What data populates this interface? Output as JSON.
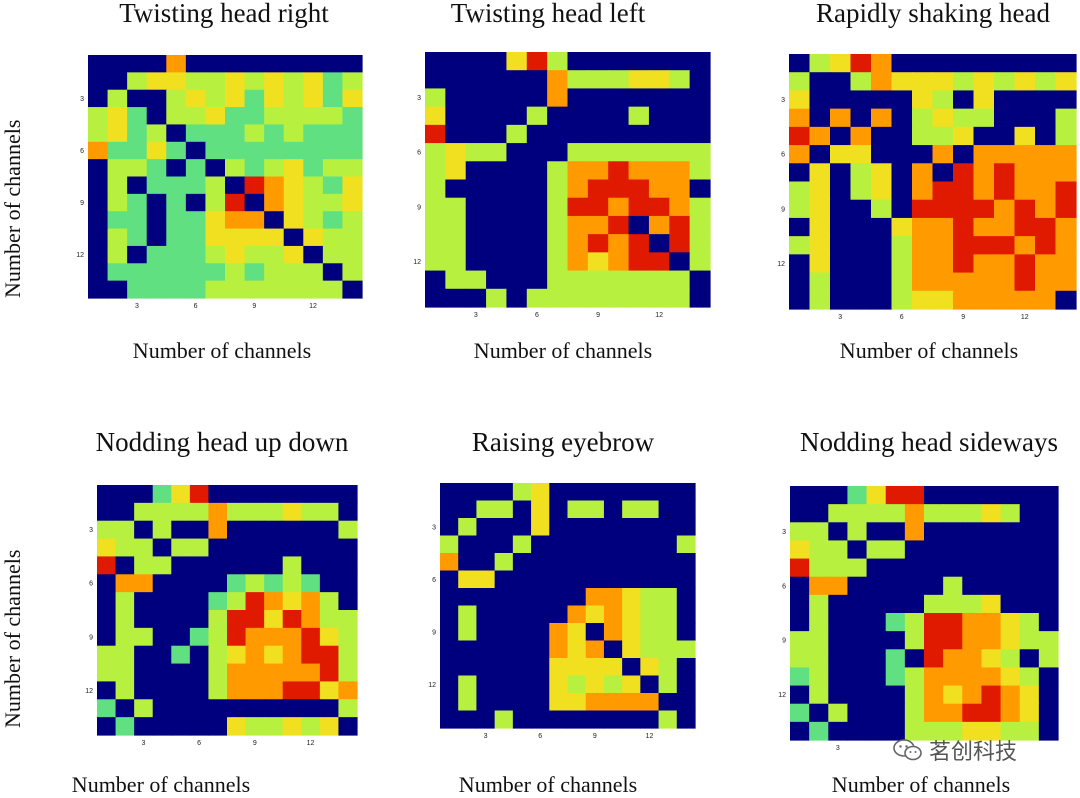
{
  "chart_data": [
    {
      "type": "heatmap",
      "title": "Twisting head right",
      "xlabel": "Number of channels",
      "ylabel": "Number of channels",
      "xticks": [
        "3",
        "6",
        "9",
        "12"
      ],
      "yticks": [
        "3",
        "6",
        "9",
        "12"
      ],
      "n": 14,
      "z": [
        [
          0,
          0,
          0,
          0,
          5,
          0,
          0,
          0,
          0,
          0,
          0,
          0,
          0,
          0
        ],
        [
          0,
          0,
          3,
          4,
          4,
          3,
          3,
          4,
          3,
          4,
          3,
          4,
          2,
          3
        ],
        [
          0,
          3,
          0,
          0,
          3,
          4,
          3,
          4,
          2,
          4,
          3,
          4,
          2,
          4
        ],
        [
          3,
          4,
          2,
          0,
          3,
          3,
          4,
          2,
          2,
          3,
          3,
          3,
          3,
          2
        ],
        [
          3,
          4,
          2,
          3,
          0,
          2,
          2,
          2,
          3,
          2,
          3,
          2,
          2,
          2
        ],
        [
          5,
          2,
          2,
          4,
          2,
          0,
          2,
          2,
          2,
          2,
          2,
          2,
          2,
          2
        ],
        [
          0,
          3,
          3,
          2,
          0,
          2,
          0,
          3,
          2,
          3,
          4,
          2,
          3,
          3
        ],
        [
          0,
          3,
          0,
          2,
          2,
          2,
          3,
          0,
          6,
          5,
          4,
          3,
          2,
          4
        ],
        [
          0,
          3,
          2,
          0,
          2,
          0,
          3,
          6,
          0,
          5,
          4,
          3,
          3,
          4
        ],
        [
          0,
          2,
          2,
          0,
          2,
          2,
          4,
          5,
          5,
          0,
          4,
          3,
          2,
          3
        ],
        [
          0,
          3,
          2,
          0,
          2,
          2,
          4,
          4,
          4,
          4,
          0,
          4,
          3,
          3
        ],
        [
          0,
          3,
          0,
          2,
          2,
          2,
          3,
          4,
          3,
          3,
          4,
          0,
          3,
          3
        ],
        [
          0,
          2,
          2,
          2,
          2,
          2,
          2,
          3,
          2,
          3,
          3,
          3,
          0,
          3
        ],
        [
          0,
          0,
          2,
          2,
          2,
          2,
          3,
          3,
          3,
          3,
          3,
          3,
          3,
          0
        ]
      ]
    },
    {
      "type": "heatmap",
      "title": "Twisting head left",
      "xlabel": "Number of channels",
      "ylabel": "",
      "xticks": [
        "3",
        "6",
        "9",
        "12"
      ],
      "yticks": [
        "3",
        "6",
        "9",
        "12"
      ],
      "n": 14,
      "z": [
        [
          0,
          0,
          0,
          0,
          4,
          6,
          3,
          0,
          0,
          0,
          0,
          0,
          0,
          0
        ],
        [
          0,
          0,
          0,
          0,
          0,
          0,
          5,
          3,
          3,
          3,
          4,
          4,
          3,
          0
        ],
        [
          3,
          0,
          0,
          0,
          0,
          0,
          5,
          0,
          0,
          0,
          0,
          0,
          0,
          0
        ],
        [
          4,
          0,
          0,
          0,
          0,
          3,
          0,
          0,
          0,
          0,
          3,
          0,
          0,
          0
        ],
        [
          6,
          0,
          0,
          0,
          3,
          0,
          0,
          0,
          0,
          0,
          0,
          0,
          0,
          0
        ],
        [
          3,
          4,
          3,
          3,
          0,
          0,
          0,
          3,
          3,
          3,
          3,
          3,
          3,
          3
        ],
        [
          3,
          4,
          0,
          0,
          0,
          0,
          3,
          5,
          5,
          6,
          5,
          5,
          5,
          3
        ],
        [
          3,
          0,
          0,
          0,
          0,
          0,
          3,
          5,
          6,
          6,
          6,
          5,
          5,
          0
        ],
        [
          3,
          3,
          0,
          0,
          0,
          0,
          3,
          6,
          6,
          5,
          6,
          6,
          5,
          3
        ],
        [
          3,
          3,
          0,
          0,
          0,
          0,
          3,
          5,
          5,
          6,
          0,
          5,
          6,
          3
        ],
        [
          3,
          3,
          0,
          0,
          0,
          0,
          3,
          5,
          6,
          5,
          6,
          0,
          6,
          3
        ],
        [
          3,
          3,
          0,
          0,
          0,
          0,
          3,
          5,
          4,
          5,
          6,
          6,
          0,
          3
        ],
        [
          0,
          3,
          3,
          0,
          0,
          0,
          3,
          3,
          3,
          3,
          3,
          3,
          3,
          0
        ],
        [
          0,
          0,
          0,
          3,
          0,
          3,
          3,
          3,
          3,
          3,
          3,
          3,
          3,
          0
        ]
      ]
    },
    {
      "type": "heatmap",
      "title": "Rapidly shaking head",
      "xlabel": "Number of channels",
      "ylabel": "",
      "xticks": [
        "3",
        "6",
        "9",
        "12"
      ],
      "yticks": [
        "3",
        "6",
        "9",
        "12"
      ],
      "n": 14,
      "z": [
        [
          0,
          3,
          4,
          6,
          5,
          0,
          0,
          0,
          0,
          0,
          0,
          0,
          0,
          0
        ],
        [
          3,
          0,
          0,
          3,
          5,
          4,
          4,
          4,
          3,
          4,
          3,
          4,
          3,
          4
        ],
        [
          4,
          0,
          0,
          0,
          0,
          0,
          4,
          3,
          0,
          4,
          0,
          0,
          0,
          0
        ],
        [
          5,
          0,
          5,
          0,
          5,
          0,
          3,
          4,
          3,
          3,
          0,
          0,
          0,
          3
        ],
        [
          6,
          5,
          0,
          5,
          0,
          0,
          3,
          3,
          4,
          0,
          0,
          4,
          0,
          3
        ],
        [
          5,
          0,
          4,
          4,
          0,
          0,
          0,
          5,
          0,
          5,
          5,
          5,
          5,
          5
        ],
        [
          0,
          4,
          0,
          3,
          4,
          0,
          5,
          0,
          6,
          5,
          6,
          5,
          5,
          5
        ],
        [
          3,
          4,
          0,
          3,
          4,
          0,
          5,
          6,
          6,
          5,
          6,
          5,
          5,
          6
        ],
        [
          3,
          4,
          0,
          0,
          3,
          0,
          6,
          6,
          6,
          6,
          5,
          6,
          5,
          6
        ],
        [
          0,
          4,
          0,
          0,
          0,
          4,
          5,
          5,
          6,
          5,
          5,
          6,
          6,
          5
        ],
        [
          3,
          4,
          0,
          0,
          0,
          3,
          5,
          5,
          6,
          6,
          6,
          5,
          6,
          5
        ],
        [
          0,
          4,
          0,
          0,
          0,
          3,
          5,
          5,
          6,
          5,
          5,
          6,
          5,
          5
        ],
        [
          0,
          3,
          0,
          0,
          0,
          3,
          5,
          5,
          5,
          5,
          5,
          6,
          5,
          5
        ],
        [
          0,
          3,
          0,
          0,
          0,
          3,
          4,
          4,
          5,
          5,
          5,
          5,
          5,
          0
        ]
      ]
    },
    {
      "type": "heatmap",
      "title": "Nodding head up down",
      "xlabel": "Number of channels",
      "ylabel": "Number of channels",
      "xticks": [
        "3",
        "6",
        "9",
        "12"
      ],
      "yticks": [
        "3",
        "6",
        "9",
        "12"
      ],
      "n": 14,
      "z": [
        [
          0,
          0,
          0,
          2,
          4,
          6,
          0,
          0,
          0,
          0,
          0,
          0,
          0,
          0
        ],
        [
          0,
          0,
          3,
          3,
          3,
          3,
          5,
          3,
          3,
          3,
          4,
          3,
          3,
          0
        ],
        [
          3,
          3,
          0,
          3,
          0,
          0,
          5,
          0,
          0,
          0,
          0,
          0,
          0,
          3
        ],
        [
          4,
          3,
          3,
          0,
          3,
          3,
          0,
          0,
          0,
          0,
          0,
          0,
          0,
          0
        ],
        [
          6,
          0,
          3,
          3,
          0,
          0,
          0,
          0,
          0,
          0,
          3,
          0,
          0,
          0
        ],
        [
          0,
          5,
          5,
          0,
          0,
          0,
          0,
          2,
          3,
          2,
          3,
          2,
          0,
          0
        ],
        [
          0,
          3,
          0,
          0,
          0,
          0,
          2,
          3,
          6,
          5,
          4,
          5,
          3,
          0
        ],
        [
          0,
          3,
          0,
          0,
          0,
          0,
          3,
          6,
          6,
          4,
          6,
          5,
          3,
          3
        ],
        [
          0,
          3,
          3,
          0,
          0,
          2,
          3,
          6,
          5,
          5,
          5,
          6,
          4,
          3
        ],
        [
          3,
          3,
          0,
          0,
          2,
          0,
          3,
          4,
          5,
          4,
          5,
          6,
          6,
          3
        ],
        [
          3,
          3,
          0,
          0,
          0,
          0,
          3,
          5,
          5,
          5,
          5,
          5,
          6,
          3
        ],
        [
          0,
          3,
          0,
          0,
          0,
          0,
          3,
          5,
          5,
          5,
          6,
          6,
          4,
          5
        ],
        [
          2,
          0,
          3,
          0,
          0,
          0,
          0,
          0,
          0,
          0,
          0,
          0,
          0,
          3
        ],
        [
          0,
          2,
          0,
          0,
          0,
          0,
          0,
          4,
          3,
          3,
          4,
          3,
          4,
          0
        ]
      ]
    },
    {
      "type": "heatmap",
      "title": "Raising eyebrow",
      "xlabel": "Number of channels",
      "ylabel": "",
      "xticks": [
        "3",
        "6",
        "9",
        "12"
      ],
      "yticks": [
        "3",
        "6",
        "9",
        "12"
      ],
      "n": 14,
      "z": [
        [
          0,
          0,
          0,
          0,
          3,
          4,
          0,
          0,
          0,
          0,
          0,
          0,
          0,
          0
        ],
        [
          0,
          0,
          3,
          3,
          0,
          4,
          0,
          3,
          3,
          0,
          3,
          3,
          0,
          0
        ],
        [
          0,
          3,
          0,
          0,
          0,
          4,
          0,
          0,
          0,
          0,
          0,
          0,
          0,
          0
        ],
        [
          3,
          0,
          0,
          0,
          3,
          0,
          0,
          0,
          0,
          0,
          0,
          0,
          0,
          3
        ],
        [
          5,
          0,
          0,
          3,
          0,
          0,
          0,
          0,
          0,
          0,
          0,
          0,
          0,
          0
        ],
        [
          0,
          4,
          4,
          0,
          0,
          0,
          0,
          0,
          0,
          0,
          0,
          0,
          0,
          0
        ],
        [
          0,
          0,
          0,
          0,
          0,
          0,
          0,
          0,
          5,
          5,
          4,
          3,
          3,
          0
        ],
        [
          0,
          3,
          0,
          0,
          0,
          0,
          0,
          5,
          4,
          5,
          4,
          3,
          3,
          0
        ],
        [
          0,
          3,
          0,
          0,
          0,
          0,
          5,
          4,
          0,
          5,
          4,
          3,
          3,
          0
        ],
        [
          0,
          0,
          0,
          0,
          0,
          0,
          5,
          4,
          5,
          0,
          4,
          3,
          3,
          3
        ],
        [
          0,
          0,
          0,
          0,
          0,
          0,
          4,
          4,
          4,
          4,
          0,
          4,
          3,
          0
        ],
        [
          0,
          3,
          0,
          0,
          0,
          0,
          4,
          3,
          4,
          3,
          4,
          0,
          3,
          0
        ],
        [
          0,
          3,
          0,
          0,
          0,
          0,
          4,
          4,
          5,
          5,
          5,
          5,
          0,
          0
        ],
        [
          0,
          0,
          0,
          3,
          0,
          0,
          0,
          0,
          0,
          0,
          0,
          0,
          3,
          0
        ]
      ]
    },
    {
      "type": "heatmap",
      "title": "Nodding head sideways",
      "xlabel": "Number of channels",
      "ylabel": "",
      "xticks": [
        "3"
      ],
      "yticks": [
        "3",
        "6",
        "9",
        "12"
      ],
      "n": 14,
      "z": [
        [
          0,
          0,
          0,
          2,
          4,
          6,
          6,
          0,
          0,
          0,
          0,
          0,
          0,
          0
        ],
        [
          0,
          0,
          3,
          3,
          3,
          3,
          5,
          3,
          3,
          3,
          4,
          3,
          0,
          0
        ],
        [
          3,
          3,
          0,
          3,
          0,
          0,
          5,
          0,
          0,
          0,
          0,
          0,
          0,
          0
        ],
        [
          4,
          3,
          3,
          0,
          3,
          3,
          0,
          0,
          0,
          0,
          0,
          0,
          0,
          0
        ],
        [
          6,
          3,
          3,
          3,
          0,
          0,
          0,
          0,
          0,
          0,
          0,
          0,
          0,
          0
        ],
        [
          0,
          5,
          5,
          0,
          0,
          0,
          0,
          0,
          3,
          0,
          0,
          0,
          0,
          0
        ],
        [
          0,
          3,
          0,
          0,
          0,
          0,
          0,
          3,
          3,
          3,
          4,
          0,
          0,
          0
        ],
        [
          0,
          3,
          0,
          0,
          0,
          2,
          3,
          6,
          6,
          5,
          5,
          4,
          3,
          0
        ],
        [
          3,
          3,
          0,
          0,
          0,
          0,
          3,
          6,
          6,
          5,
          5,
          4,
          3,
          3
        ],
        [
          3,
          3,
          0,
          0,
          0,
          2,
          0,
          6,
          5,
          5,
          4,
          3,
          0,
          3
        ],
        [
          2,
          3,
          0,
          0,
          0,
          2,
          3,
          5,
          5,
          5,
          5,
          4,
          3,
          0
        ],
        [
          0,
          3,
          0,
          0,
          0,
          0,
          3,
          5,
          4,
          5,
          6,
          5,
          4,
          0
        ],
        [
          2,
          0,
          3,
          0,
          0,
          0,
          3,
          5,
          5,
          6,
          6,
          5,
          4,
          0
        ],
        [
          0,
          2,
          0,
          0,
          0,
          0,
          3,
          3,
          3,
          4,
          4,
          3,
          3,
          0
        ]
      ]
    }
  ],
  "colormap": [
    "#00007f",
    "#2fc0c0",
    "#60e080",
    "#b8f040",
    "#f0e020",
    "#ff9a00",
    "#e01a00",
    "#a40000"
  ],
  "watermark": {
    "text": "茗创科技",
    "icon": "wechat-icon"
  }
}
